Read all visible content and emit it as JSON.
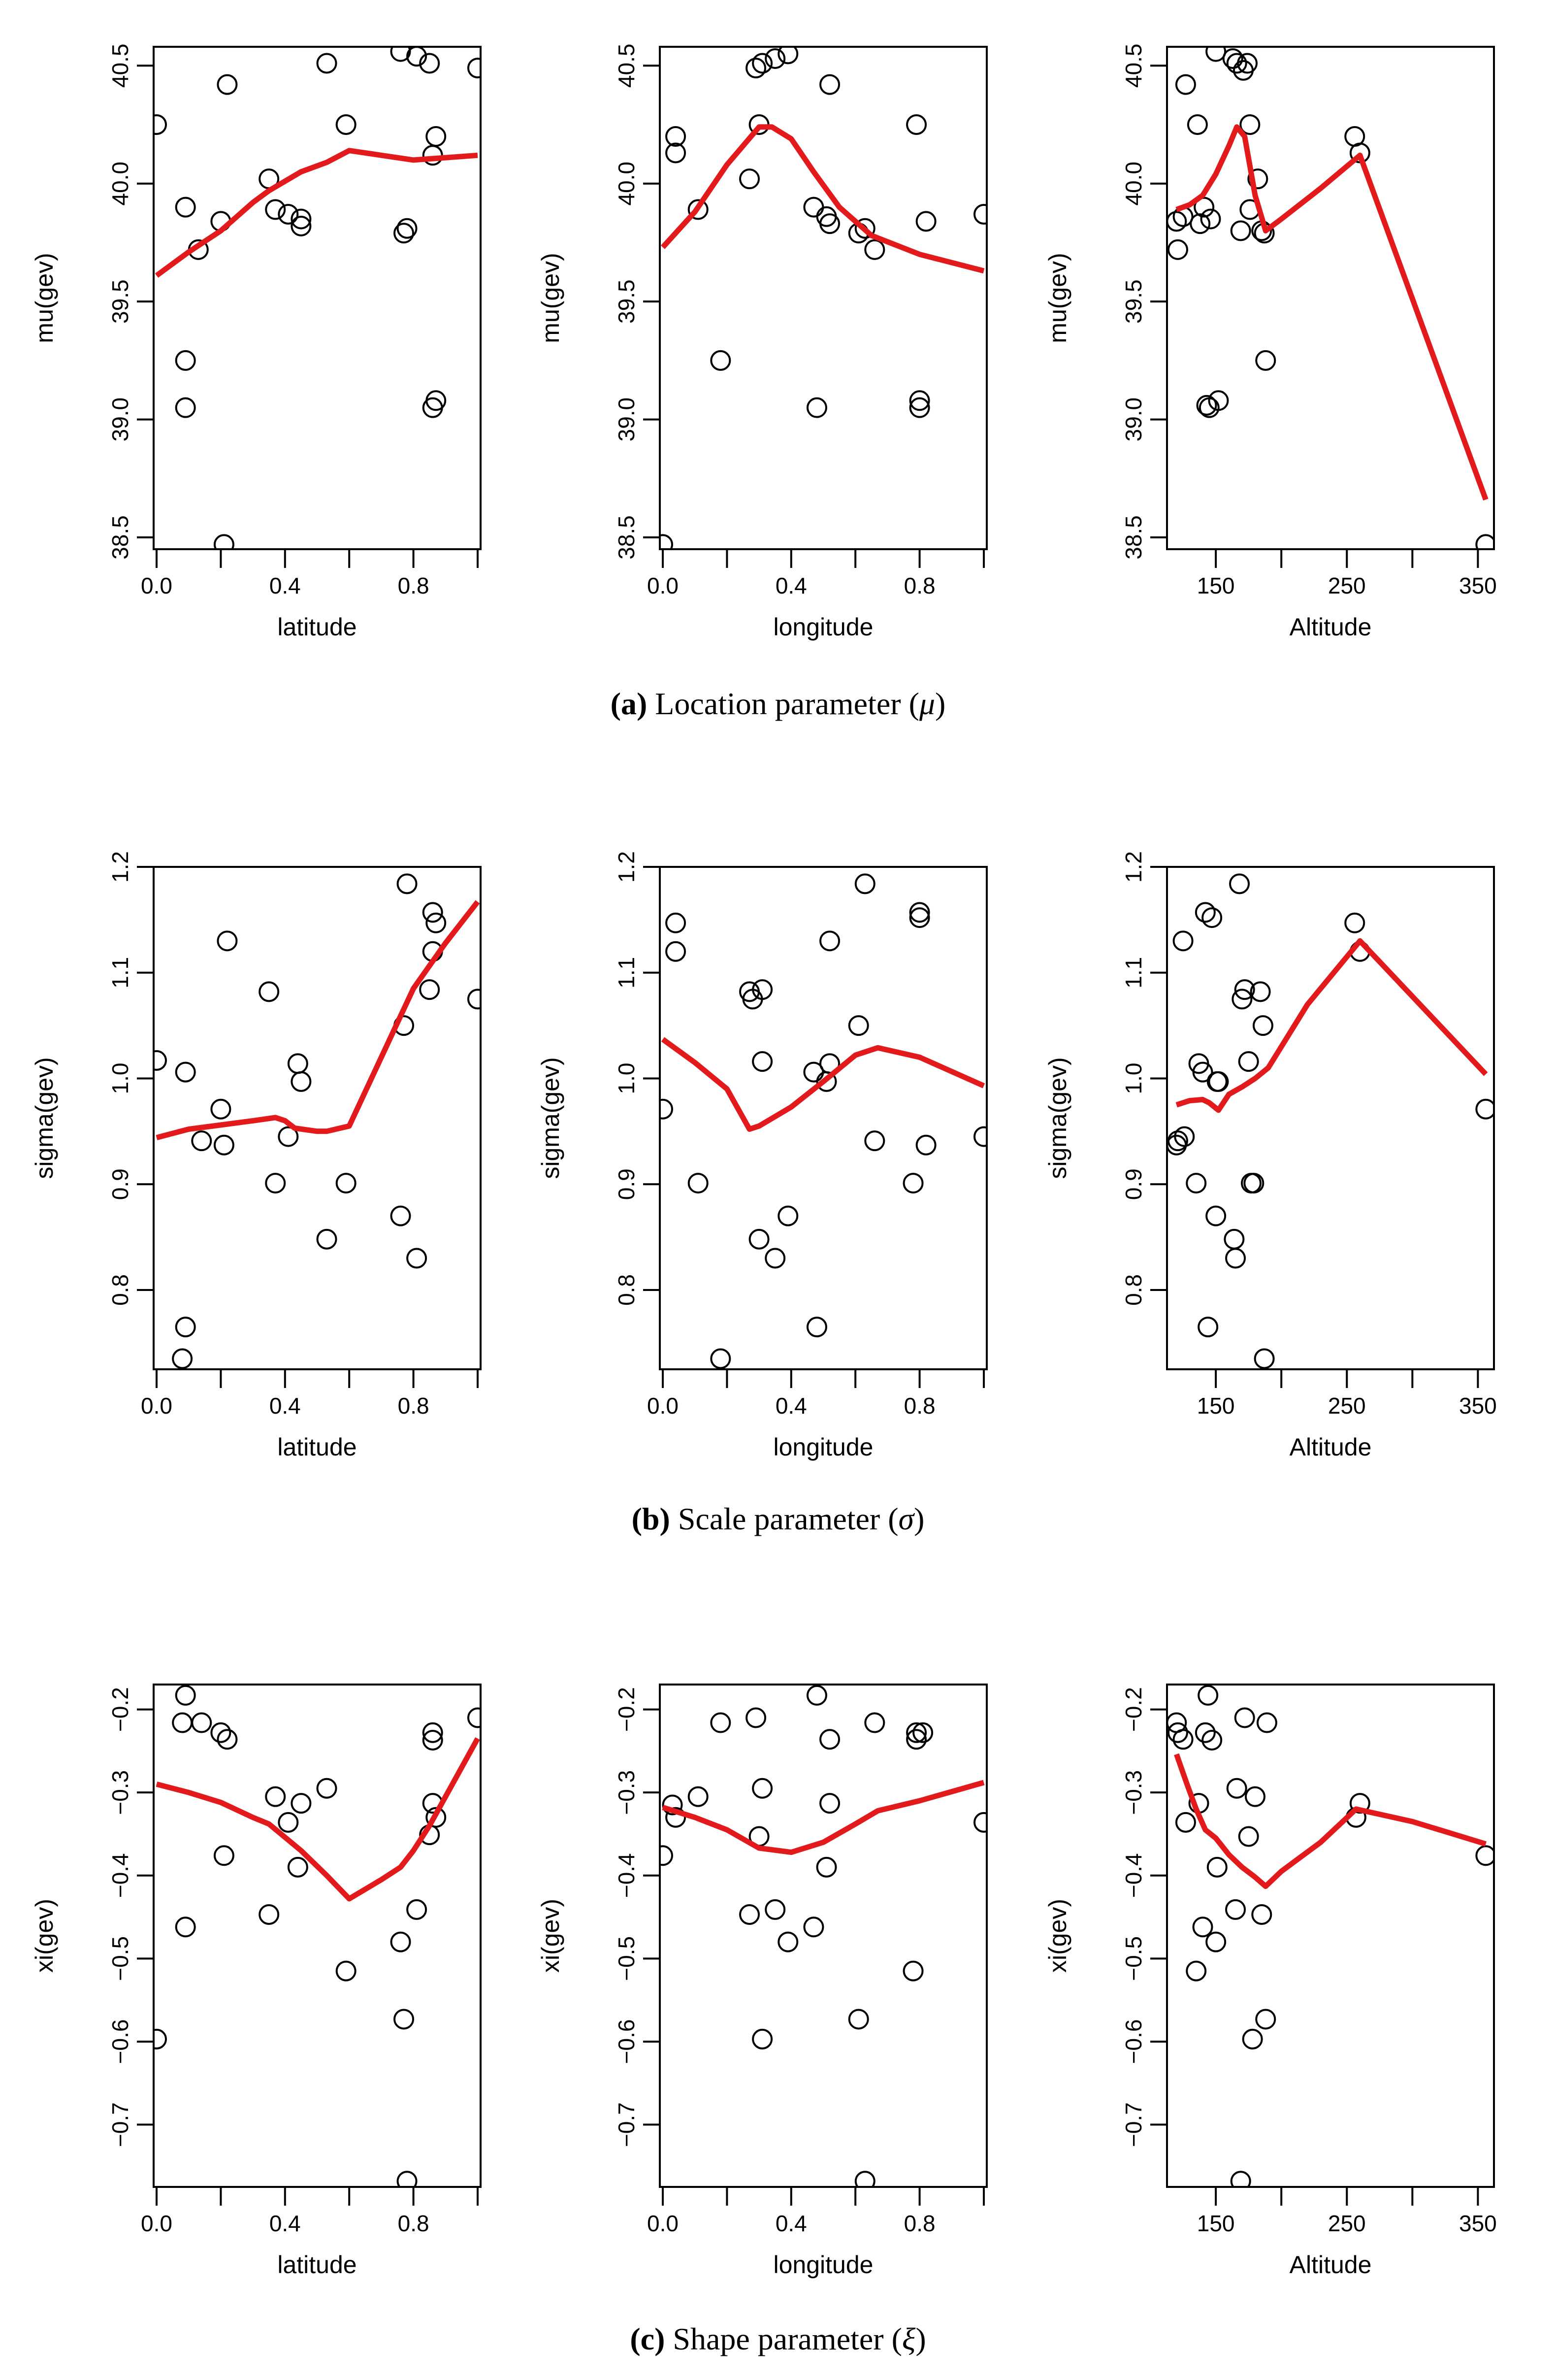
{
  "captions": {
    "a": {
      "tag": "(a)",
      "text": "Location parameter (",
      "symbol": "μ",
      "close": ")"
    },
    "b": {
      "tag": "(b)",
      "text": "Scale parameter (",
      "symbol": "σ",
      "close": ")"
    },
    "c": {
      "tag": "(c)",
      "text": "Shape parameter (",
      "symbol": "ξ",
      "close": ")"
    }
  },
  "colors": {
    "fit_line": "#e31a1c",
    "points": "#000000"
  },
  "chart_data": [
    {
      "type": "scatter",
      "xlabel": "latitude",
      "ylabel": "mu(gev)",
      "xlim": [
        0,
        1
      ],
      "ylim": [
        38.45,
        40.58
      ],
      "xticks": [
        0.0,
        0.4,
        0.8
      ],
      "xtick_labels": [
        "0.0",
        "0.4",
        "0.8"
      ],
      "xminor": [
        0.2,
        0.6,
        1.0
      ],
      "yticks": [
        38.5,
        39.0,
        39.5,
        40.0,
        40.5
      ],
      "ytick_labels": [
        "38.5",
        "39.0",
        "39.5",
        "40.0",
        "40.5"
      ],
      "points": {
        "x": [
          0.0,
          0.09,
          0.09,
          0.09,
          0.13,
          0.2,
          0.21,
          0.22,
          0.35,
          0.37,
          0.41,
          0.45,
          0.45,
          0.53,
          0.59,
          0.76,
          0.77,
          0.78,
          0.81,
          0.85,
          0.86,
          0.86,
          0.87,
          0.87,
          1.0
        ],
        "y": [
          40.25,
          39.9,
          39.25,
          39.05,
          39.72,
          39.84,
          38.47,
          40.42,
          40.02,
          39.89,
          39.87,
          39.85,
          39.82,
          40.51,
          40.25,
          40.56,
          39.79,
          39.81,
          40.54,
          40.51,
          40.12,
          39.05,
          39.08,
          40.2,
          40.49
        ]
      },
      "line": {
        "x": [
          0.0,
          0.1,
          0.2,
          0.3,
          0.35,
          0.45,
          0.53,
          0.6,
          0.7,
          0.8,
          0.9,
          1.0
        ],
        "y": [
          39.61,
          39.71,
          39.8,
          39.92,
          39.97,
          40.05,
          40.09,
          40.14,
          40.12,
          40.1,
          40.11,
          40.12
        ]
      }
    },
    {
      "type": "scatter",
      "xlabel": "longitude",
      "ylabel": "mu(gev)",
      "xlim": [
        0,
        1
      ],
      "ylim": [
        38.45,
        40.58
      ],
      "xticks": [
        0.0,
        0.4,
        0.8
      ],
      "xtick_labels": [
        "0.0",
        "0.4",
        "0.8"
      ],
      "xminor": [
        0.2,
        0.6,
        1.0
      ],
      "yticks": [
        38.5,
        39.0,
        39.5,
        40.0,
        40.5
      ],
      "ytick_labels": [
        "38.5",
        "39.0",
        "39.5",
        "40.0",
        "40.5"
      ],
      "points": {
        "x": [
          0.0,
          0.04,
          0.04,
          0.11,
          0.18,
          0.27,
          0.29,
          0.3,
          0.31,
          0.35,
          0.39,
          0.47,
          0.48,
          0.51,
          0.52,
          0.52,
          0.61,
          0.63,
          0.66,
          0.79,
          0.8,
          0.8,
          0.82,
          1.0
        ],
        "y": [
          38.47,
          40.2,
          40.13,
          39.89,
          39.25,
          40.02,
          40.49,
          40.25,
          40.51,
          40.53,
          40.55,
          39.9,
          39.05,
          39.86,
          39.83,
          40.42,
          39.79,
          39.81,
          39.72,
          40.25,
          39.08,
          39.05,
          39.84,
          39.87
        ]
      },
      "line": {
        "x": [
          0.0,
          0.1,
          0.2,
          0.3,
          0.34,
          0.4,
          0.47,
          0.55,
          0.65,
          0.8,
          1.0
        ],
        "y": [
          39.73,
          39.88,
          40.08,
          40.24,
          40.24,
          40.19,
          40.05,
          39.9,
          39.78,
          39.7,
          39.63
        ]
      }
    },
    {
      "type": "scatter",
      "xlabel": "Altitude",
      "ylabel": "mu(gev)",
      "xlim": [
        115,
        360
      ],
      "ylim": [
        38.45,
        40.58
      ],
      "xticks": [
        150,
        250,
        350
      ],
      "xtick_labels": [
        "150",
        "250",
        "350"
      ],
      "xminor": [
        200,
        300
      ],
      "yticks": [
        38.5,
        39.0,
        39.5,
        40.0,
        40.5
      ],
      "ytick_labels": [
        "38.5",
        "39.0",
        "39.5",
        "40.0",
        "40.5"
      ],
      "points": {
        "x": [
          120,
          121,
          127,
          125,
          136,
          138,
          141,
          143,
          145,
          146,
          152,
          150,
          163,
          166,
          169,
          171,
          174,
          176,
          176,
          182,
          185,
          187,
          188,
          256,
          260,
          356
        ],
        "y": [
          39.84,
          39.72,
          40.42,
          39.86,
          40.25,
          39.83,
          39.9,
          39.06,
          39.05,
          39.85,
          39.08,
          40.56,
          40.53,
          40.51,
          39.8,
          40.48,
          40.51,
          40.25,
          39.89,
          40.02,
          39.8,
          39.79,
          39.25,
          40.2,
          40.13,
          38.47
        ]
      },
      "line": {
        "x": [
          120,
          130,
          140,
          150,
          160,
          166,
          172,
          180,
          188,
          200,
          230,
          260,
          356
        ],
        "y": [
          39.89,
          39.91,
          39.95,
          40.04,
          40.16,
          40.24,
          40.2,
          39.95,
          39.8,
          39.85,
          39.98,
          40.12,
          38.66
        ]
      }
    },
    {
      "type": "scatter",
      "xlabel": "latitude",
      "ylabel": "sigma(gev)",
      "xlim": [
        0,
        1
      ],
      "ylim": [
        0.725,
        1.2
      ],
      "xticks": [
        0.0,
        0.4,
        0.8
      ],
      "xtick_labels": [
        "0.0",
        "0.4",
        "0.8"
      ],
      "xminor": [
        0.2,
        0.6,
        1.0
      ],
      "yticks": [
        0.8,
        0.9,
        1.0,
        1.1,
        1.2
      ],
      "ytick_labels": [
        "0.8",
        "0.9",
        "1.0",
        "1.1",
        "1.2"
      ],
      "points": {
        "x": [
          0.0,
          0.08,
          0.09,
          0.09,
          0.14,
          0.2,
          0.21,
          0.22,
          0.35,
          0.37,
          0.41,
          0.44,
          0.45,
          0.53,
          0.59,
          0.76,
          0.77,
          0.78,
          0.81,
          0.85,
          0.86,
          0.86,
          0.87,
          1.0
        ],
        "y": [
          1.017,
          0.735,
          1.006,
          0.765,
          0.941,
          0.971,
          0.937,
          1.13,
          1.082,
          0.901,
          0.945,
          1.014,
          0.997,
          0.848,
          0.901,
          0.87,
          1.05,
          1.184,
          0.83,
          1.084,
          1.12,
          1.157,
          1.147,
          1.075
        ]
      },
      "line": {
        "x": [
          0.0,
          0.1,
          0.2,
          0.3,
          0.37,
          0.4,
          0.43,
          0.5,
          0.53,
          0.6,
          0.7,
          0.8,
          0.9,
          1.0
        ],
        "y": [
          0.944,
          0.952,
          0.956,
          0.96,
          0.963,
          0.96,
          0.953,
          0.95,
          0.95,
          0.955,
          1.02,
          1.085,
          1.128,
          1.167
        ]
      }
    },
    {
      "type": "scatter",
      "xlabel": "longitude",
      "ylabel": "sigma(gev)",
      "xlim": [
        0,
        1
      ],
      "ylim": [
        0.725,
        1.2
      ],
      "xticks": [
        0.0,
        0.4,
        0.8
      ],
      "xtick_labels": [
        "0.0",
        "0.4",
        "0.8"
      ],
      "xminor": [
        0.2,
        0.6,
        1.0
      ],
      "yticks": [
        0.8,
        0.9,
        1.0,
        1.1,
        1.2
      ],
      "ytick_labels": [
        "0.8",
        "0.9",
        "1.0",
        "1.1",
        "1.2"
      ],
      "points": {
        "x": [
          0.0,
          0.04,
          0.04,
          0.11,
          0.18,
          0.27,
          0.28,
          0.3,
          0.31,
          0.31,
          0.35,
          0.39,
          0.47,
          0.48,
          0.51,
          0.52,
          0.52,
          0.61,
          0.63,
          0.66,
          0.78,
          0.8,
          0.8,
          0.82,
          1.0
        ],
        "y": [
          0.971,
          1.147,
          1.12,
          0.901,
          0.735,
          1.082,
          1.075,
          0.848,
          1.016,
          1.084,
          0.83,
          0.87,
          1.006,
          0.765,
          0.997,
          1.014,
          1.13,
          1.05,
          1.184,
          0.941,
          0.901,
          1.152,
          1.157,
          0.937,
          0.945
        ]
      },
      "line": {
        "x": [
          0.0,
          0.1,
          0.2,
          0.27,
          0.3,
          0.4,
          0.5,
          0.6,
          0.67,
          0.8,
          1.0
        ],
        "y": [
          1.037,
          1.015,
          0.99,
          0.952,
          0.955,
          0.973,
          0.997,
          1.022,
          1.029,
          1.02,
          0.993
        ]
      }
    },
    {
      "type": "scatter",
      "xlabel": "Altitude",
      "ylabel": "sigma(gev)",
      "xlim": [
        115,
        360
      ],
      "ylim": [
        0.725,
        1.2
      ],
      "xticks": [
        150,
        250,
        350
      ],
      "xtick_labels": [
        "150",
        "250",
        "350"
      ],
      "xminor": [
        200,
        300
      ],
      "yticks": [
        0.8,
        0.9,
        1.0,
        1.1,
        1.2
      ],
      "ytick_labels": [
        "0.8",
        "0.9",
        "1.0",
        "1.1",
        "1.2"
      ],
      "points": {
        "x": [
          120,
          121,
          126,
          125,
          135,
          137,
          140,
          142,
          144,
          147,
          150,
          151,
          152,
          164,
          165,
          168,
          170,
          172,
          175,
          177,
          179,
          184,
          186,
          187,
          256,
          260,
          356
        ],
        "y": [
          0.937,
          0.941,
          0.945,
          1.13,
          0.901,
          1.014,
          1.006,
          1.157,
          0.765,
          1.152,
          0.87,
          0.997,
          0.997,
          0.848,
          0.83,
          1.184,
          1.075,
          1.084,
          1.016,
          0.901,
          0.901,
          1.082,
          1.05,
          0.735,
          1.147,
          1.12,
          0.971
        ]
      },
      "line": {
        "x": [
          120,
          130,
          140,
          145,
          152,
          160,
          170,
          180,
          190,
          220,
          260,
          356
        ],
        "y": [
          0.975,
          0.979,
          0.98,
          0.977,
          0.97,
          0.985,
          0.992,
          1.0,
          1.01,
          1.07,
          1.13,
          1.004
        ]
      }
    },
    {
      "type": "scatter",
      "xlabel": "latitude",
      "ylabel": "xi(gev)",
      "xlim": [
        0,
        1
      ],
      "ylim": [
        -0.775,
        -0.17
      ],
      "xticks": [
        0.0,
        0.4,
        0.8
      ],
      "xtick_labels": [
        "0.0",
        "0.4",
        "0.8"
      ],
      "xminor": [
        0.2,
        0.6,
        1.0
      ],
      "yticks": [
        -0.7,
        -0.6,
        -0.5,
        -0.4,
        -0.3,
        -0.2
      ],
      "ytick_labels": [
        "−0.7",
        "−0.6",
        "−0.5",
        "−0.4",
        "−0.3",
        "−0.2"
      ],
      "points": {
        "x": [
          0.0,
          0.08,
          0.09,
          0.09,
          0.14,
          0.2,
          0.21,
          0.22,
          0.35,
          0.37,
          0.41,
          0.44,
          0.45,
          0.53,
          0.59,
          0.76,
          0.77,
          0.78,
          0.81,
          0.85,
          0.86,
          0.86,
          0.86,
          0.87,
          1.0
        ],
        "y": [
          -0.597,
          -0.216,
          -0.183,
          -0.462,
          -0.216,
          -0.228,
          -0.376,
          -0.236,
          -0.447,
          -0.305,
          -0.336,
          -0.39,
          -0.313,
          -0.295,
          -0.515,
          -0.48,
          -0.573,
          -0.768,
          -0.441,
          -0.351,
          -0.228,
          -0.313,
          -0.237,
          -0.33,
          -0.21
        ]
      },
      "line": {
        "x": [
          0.0,
          0.1,
          0.2,
          0.3,
          0.35,
          0.45,
          0.53,
          0.6,
          0.7,
          0.76,
          0.8,
          0.85,
          0.9,
          1.0
        ],
        "y": [
          -0.29,
          -0.3,
          -0.312,
          -0.33,
          -0.338,
          -0.37,
          -0.4,
          -0.428,
          -0.405,
          -0.39,
          -0.37,
          -0.34,
          -0.305,
          -0.235
        ]
      }
    },
    {
      "type": "scatter",
      "xlabel": "longitude",
      "ylabel": "xi(gev)",
      "xlim": [
        0,
        1
      ],
      "ylim": [
        -0.775,
        -0.17
      ],
      "xticks": [
        0.0,
        0.4,
        0.8
      ],
      "xtick_labels": [
        "0.0",
        "0.4",
        "0.8"
      ],
      "xminor": [
        0.2,
        0.6,
        1.0
      ],
      "yticks": [
        -0.7,
        -0.6,
        -0.5,
        -0.4,
        -0.3,
        -0.2
      ],
      "ytick_labels": [
        "−0.7",
        "−0.6",
        "−0.5",
        "−0.4",
        "−0.3",
        "−0.2"
      ],
      "points": {
        "x": [
          0.0,
          0.03,
          0.04,
          0.11,
          0.18,
          0.27,
          0.29,
          0.3,
          0.31,
          0.31,
          0.35,
          0.39,
          0.47,
          0.48,
          0.51,
          0.52,
          0.52,
          0.61,
          0.63,
          0.66,
          0.78,
          0.79,
          0.79,
          0.81,
          1.0
        ],
        "y": [
          -0.376,
          -0.315,
          -0.33,
          -0.305,
          -0.216,
          -0.447,
          -0.21,
          -0.353,
          -0.295,
          -0.597,
          -0.441,
          -0.48,
          -0.462,
          -0.183,
          -0.39,
          -0.313,
          -0.236,
          -0.573,
          -0.768,
          -0.216,
          -0.515,
          -0.236,
          -0.228,
          -0.228,
          -0.336
        ]
      },
      "line": {
        "x": [
          0.0,
          0.1,
          0.2,
          0.3,
          0.4,
          0.5,
          0.6,
          0.67,
          0.8,
          1.0
        ],
        "y": [
          -0.318,
          -0.33,
          -0.345,
          -0.367,
          -0.372,
          -0.36,
          -0.338,
          -0.322,
          -0.31,
          -0.288
        ]
      }
    },
    {
      "type": "scatter",
      "xlabel": "Altitude",
      "ylabel": "xi(gev)",
      "xlim": [
        115,
        360
      ],
      "ylim": [
        -0.775,
        -0.17
      ],
      "xticks": [
        150,
        250,
        350
      ],
      "xtick_labels": [
        "150",
        "250",
        "350"
      ],
      "xminor": [
        200,
        300
      ],
      "yticks": [
        -0.7,
        -0.6,
        -0.5,
        -0.4,
        -0.3,
        -0.2
      ],
      "ytick_labels": [
        "−0.7",
        "−0.6",
        "−0.5",
        "−0.4",
        "−0.3",
        "−0.2"
      ],
      "points": {
        "x": [
          120,
          121,
          125,
          127,
          135,
          137,
          140,
          142,
          144,
          147,
          150,
          151,
          165,
          166,
          169,
          172,
          175,
          178,
          180,
          185,
          188,
          189,
          257,
          260,
          356
        ],
        "y": [
          -0.216,
          -0.228,
          -0.236,
          -0.336,
          -0.515,
          -0.313,
          -0.462,
          -0.228,
          -0.183,
          -0.237,
          -0.48,
          -0.39,
          -0.441,
          -0.295,
          -0.768,
          -0.21,
          -0.353,
          -0.597,
          -0.305,
          -0.447,
          -0.573,
          -0.216,
          -0.33,
          -0.313,
          -0.376
        ]
      },
      "line": {
        "x": [
          120,
          128,
          135,
          142,
          150,
          160,
          170,
          180,
          188,
          200,
          230,
          257,
          300,
          356
        ],
        "y": [
          -0.254,
          -0.29,
          -0.32,
          -0.345,
          -0.355,
          -0.375,
          -0.39,
          -0.402,
          -0.413,
          -0.395,
          -0.36,
          -0.32,
          -0.335,
          -0.362
        ]
      }
    }
  ]
}
